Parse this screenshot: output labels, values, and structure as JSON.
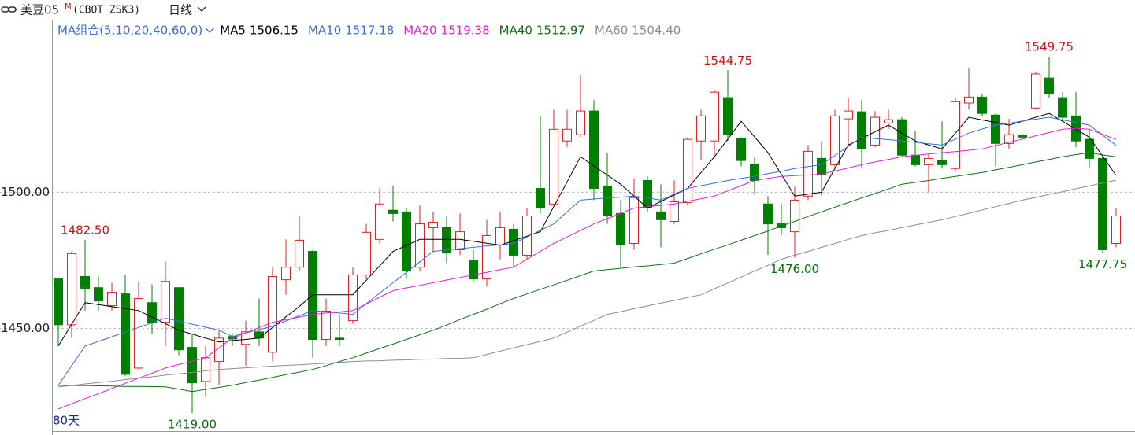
{
  "header": {
    "symbol": "美豆05",
    "flag": "M",
    "code": "(CBOT ZSK3)",
    "period": "日线"
  },
  "chart_data": {
    "type": "candlestick",
    "ma_group": "MA组合(5,10,20,40,60,0)",
    "footer": "80天",
    "ylim": [
      1412.4,
      1563.0
    ],
    "yticks": [
      {
        "value": 1450,
        "label": "1450.00"
      },
      {
        "value": 1500,
        "label": "1500.00"
      }
    ],
    "grid": true,
    "up_color": "#e02020",
    "down_color": "#008000",
    "candles": {
      "open": [
        1468.2,
        1451.4,
        1469.1,
        1465.0,
        1458.4,
        1462.7,
        1435.5,
        1459.5,
        1452.3,
        1465.0,
        1443.1,
        1430.6,
        1437.9,
        1447.1,
        1444.2,
        1448.8,
        1441.3,
        1467.9,
        1472.5,
        1478.3,
        1446.0,
        1446.5,
        1452.9,
        1469.7,
        1482.7,
        1493.4,
        1492.8,
        1472.5,
        1487.0,
        1487.0,
        1478.9,
        1474.9,
        1468.2,
        1480.6,
        1486.4,
        1476.9,
        1501.4,
        1495.7,
        1518.8,
        1521.1,
        1529.8,
        1502.3,
        1492.2,
        1481.2,
        1504.3,
        1492.8,
        1489.3,
        1496.2,
        1518.8,
        1518.8,
        1534.7,
        1519.7,
        1510.1,
        1495.7,
        1488.4,
        1485.5,
        1498.6,
        1512.4,
        1510.1,
        1526.9,
        1529.5,
        1517.3,
        1525.4,
        1526.6,
        1513.6,
        1510.1,
        1511.6,
        1508.7,
        1532.7,
        1534.9,
        1528.3,
        1517.9,
        1520.8,
        1530.9,
        1541.9,
        1534.7,
        1528.0,
        1519.4,
        1512.4,
        1481.2
      ],
      "high": [
        1468.2,
        1478.3,
        1482.5,
        1469.1,
        1466.8,
        1469.7,
        1467.3,
        1466.2,
        1474.6,
        1465.0,
        1448.0,
        1443.6,
        1449.4,
        1448.3,
        1452.9,
        1461.0,
        1472.5,
        1482.7,
        1491.3,
        1478.9,
        1461.0,
        1455.2,
        1472.5,
        1488.4,
        1501.4,
        1502.3,
        1494.2,
        1495.1,
        1492.8,
        1491.3,
        1492.2,
        1478.9,
        1489.9,
        1492.8,
        1488.4,
        1494.2,
        1528.0,
        1530.3,
        1530.3,
        1543.1,
        1533.8,
        1514.5,
        1497.1,
        1504.9,
        1505.8,
        1502.9,
        1504.3,
        1520.2,
        1530.3,
        1537.6,
        1544.75,
        1520.2,
        1513.0,
        1498.6,
        1495.7,
        1502.0,
        1517.3,
        1518.8,
        1530.3,
        1534.7,
        1533.8,
        1529.8,
        1530.3,
        1527.5,
        1522.3,
        1514.5,
        1526.0,
        1534.7,
        1545.4,
        1536.1,
        1528.9,
        1526.9,
        1521.4,
        1544.2,
        1549.75,
        1536.7,
        1536.7,
        1523.1,
        1513.6,
        1494.2
      ],
      "low": [
        1443.6,
        1446.5,
        1456.6,
        1456.6,
        1456.6,
        1432.7,
        1435.0,
        1448.0,
        1443.6,
        1440.2,
        1419.0,
        1424.9,
        1429.2,
        1443.6,
        1436.4,
        1443.6,
        1437.9,
        1462.4,
        1471.1,
        1439.3,
        1443.6,
        1443.6,
        1451.7,
        1468.2,
        1481.2,
        1489.3,
        1468.2,
        1471.1,
        1478.3,
        1474.0,
        1476.9,
        1467.3,
        1465.3,
        1475.4,
        1472.5,
        1475.4,
        1492.2,
        1495.1,
        1516.5,
        1520.2,
        1497.1,
        1488.4,
        1472.5,
        1478.9,
        1492.8,
        1479.8,
        1488.4,
        1495.1,
        1511.6,
        1513.6,
        1518.8,
        1509.5,
        1499.1,
        1477.0,
        1484.1,
        1476.0,
        1497.1,
        1498.6,
        1508.7,
        1517.3,
        1508.7,
        1516.5,
        1523.1,
        1513.0,
        1509.5,
        1500.0,
        1508.7,
        1507.8,
        1530.3,
        1528.0,
        1509.5,
        1515.9,
        1519.7,
        1530.3,
        1534.7,
        1526.0,
        1516.5,
        1508.7,
        1477.75,
        1479.8
      ],
      "close": [
        1451.4,
        1477.5,
        1464.7,
        1460.1,
        1463.3,
        1433.2,
        1461.0,
        1452.3,
        1467.3,
        1442.2,
        1430.1,
        1439.3,
        1446.5,
        1446.2,
        1448.8,
        1446.5,
        1469.1,
        1472.5,
        1482.4,
        1446.0,
        1456.4,
        1446.0,
        1469.7,
        1485.3,
        1495.7,
        1492.2,
        1471.1,
        1488.4,
        1489.0,
        1477.7,
        1485.5,
        1468.2,
        1484.1,
        1487.0,
        1476.9,
        1491.3,
        1494.2,
        1523.1,
        1523.1,
        1529.8,
        1501.4,
        1491.3,
        1480.6,
        1498.0,
        1494.2,
        1489.9,
        1496.5,
        1519.4,
        1528.0,
        1536.7,
        1521.1,
        1511.6,
        1504.3,
        1488.4,
        1487.0,
        1497.1,
        1515.0,
        1506.6,
        1528.0,
        1529.8,
        1515.9,
        1527.5,
        1526.6,
        1513.6,
        1510.1,
        1512.4,
        1510.1,
        1533.2,
        1534.9,
        1528.9,
        1517.9,
        1521.1,
        1520.2,
        1543.4,
        1536.1,
        1527.5,
        1518.8,
        1512.4,
        1478.9,
        1491.3
      ]
    },
    "series": [
      {
        "name": "MA5",
        "color": "#000000",
        "last": "1506.15",
        "values": [
          1443.6,
          1451.6,
          1459.5,
          1458.8,
          1458.0,
          1457.3,
          1456.6,
          1454.2,
          1451.8,
          1449.4,
          1448.0,
          1446.5,
          1445.1,
          1445.6,
          1446.0,
          1446.5,
          1450.4,
          1454.3,
          1458.1,
          1462.4,
          1462.4,
          1462.4,
          1462.4,
          1467.7,
          1473.0,
          1478.3,
          1480.5,
          1482.7,
          1482.7,
          1482.7,
          1482.7,
          1482.0,
          1481.3,
          1480.6,
          1482.2,
          1483.9,
          1485.5,
          1494.7,
          1503.8,
          1513.0,
          1509.6,
          1506.3,
          1502.9,
          1498.6,
          1494.2,
          1496.6,
          1499.0,
          1501.4,
          1507.2,
          1513.0,
          1519.5,
          1526.0,
          1520.3,
          1514.5,
          1506.6,
          1498.6,
          1499.3,
          1500.0,
          1508.7,
          1517.3,
          1519.7,
          1522.2,
          1524.6,
          1521.7,
          1518.8,
          1517.3,
          1515.9,
          1521.7,
          1527.5,
          1526.5,
          1525.6,
          1524.6,
          1526.0,
          1527.5,
          1528.9,
          1526.0,
          1523.1,
          1520.2,
          1513.2,
          1506.15
        ]
      },
      {
        "name": "MA10",
        "color": "#3a6fd8",
        "last": "1517.18",
        "values": [
          1429.2,
          1436.4,
          1443.6,
          1445.3,
          1447.0,
          1448.7,
          1450.4,
          1452.1,
          1453.8,
          1452.7,
          1451.6,
          1450.5,
          1449.4,
          1447.1,
          1448.4,
          1449.6,
          1450.9,
          1452.8,
          1454.7,
          1456.6,
          1456.1,
          1455.7,
          1455.2,
          1459.1,
          1463.0,
          1466.8,
          1470.6,
          1474.5,
          1478.3,
          1478.8,
          1479.3,
          1479.8,
          1480.3,
          1480.7,
          1481.2,
          1483.6,
          1486.0,
          1488.4,
          1492.8,
          1497.1,
          1497.5,
          1497.9,
          1498.2,
          1498.6,
          1497.9,
          1497.1,
          1499.3,
          1501.4,
          1502.4,
          1503.3,
          1504.3,
          1505.1,
          1505.8,
          1506.8,
          1507.7,
          1508.7,
          1509.4,
          1510.1,
          1513.5,
          1516.8,
          1520.2,
          1519.7,
          1519.3,
          1518.8,
          1518.3,
          1517.8,
          1517.3,
          1519.5,
          1521.7,
          1523.2,
          1524.6,
          1525.3,
          1526.1,
          1526.8,
          1527.5,
          1526.5,
          1525.6,
          1524.6,
          1520.9,
          1517.18
        ]
      },
      {
        "name": "MA20",
        "color": "#e020d0",
        "last": "1519.38",
        "values": [
          1420.5,
          1422.4,
          1424.3,
          1426.1,
          1428.0,
          1429.9,
          1431.8,
          1433.6,
          1435.5,
          1436.8,
          1438.0,
          1439.3,
          1442.9,
          1446.5,
          1448.4,
          1450.4,
          1452.3,
          1453.3,
          1454.2,
          1455.2,
          1455.7,
          1456.1,
          1456.6,
          1459.0,
          1461.5,
          1463.9,
          1464.9,
          1465.8,
          1466.8,
          1467.8,
          1468.7,
          1469.7,
          1470.6,
          1471.6,
          1472.5,
          1475.4,
          1478.3,
          1481.2,
          1483.6,
          1486.0,
          1488.4,
          1490.3,
          1492.3,
          1494.2,
          1494.7,
          1495.2,
          1495.7,
          1496.7,
          1497.6,
          1498.6,
          1500.5,
          1502.4,
          1504.3,
          1505.1,
          1505.8,
          1506.1,
          1506.3,
          1506.6,
          1507.8,
          1508.9,
          1510.1,
          1511.1,
          1512.0,
          1513.0,
          1513.5,
          1514.0,
          1514.5,
          1514.9,
          1515.4,
          1515.9,
          1517.1,
          1518.3,
          1519.5,
          1520.7,
          1521.9,
          1523.1,
          1523.4,
          1523.1,
          1521.2,
          1519.38
        ]
      },
      {
        "name": "MA40",
        "color": "#107010",
        "last": "1512.97",
        "values": [
          1429.2,
          1429.1,
          1429.1,
          1429.0,
          1428.9,
          1428.8,
          1428.8,
          1428.7,
          1428.6,
          1427.8,
          1426.9,
          1427.7,
          1428.4,
          1429.2,
          1430.2,
          1431.1,
          1432.1,
          1433.1,
          1434.0,
          1435.0,
          1436.4,
          1437.9,
          1439.3,
          1441.0,
          1442.7,
          1444.3,
          1446.0,
          1447.7,
          1449.4,
          1451.3,
          1453.3,
          1455.2,
          1457.1,
          1459.1,
          1461.0,
          1462.7,
          1464.4,
          1466.0,
          1467.7,
          1469.4,
          1471.1,
          1471.6,
          1472.1,
          1472.6,
          1473.0,
          1473.5,
          1474.0,
          1475.7,
          1477.4,
          1479.1,
          1480.7,
          1482.4,
          1484.1,
          1485.8,
          1487.6,
          1489.3,
          1491.1,
          1492.8,
          1494.5,
          1496.2,
          1497.9,
          1499.5,
          1501.2,
          1502.9,
          1503.6,
          1504.3,
          1505.1,
          1505.8,
          1506.5,
          1507.2,
          1508.2,
          1509.1,
          1510.1,
          1511.1,
          1512.0,
          1513.0,
          1513.8,
          1514.5,
          1513.7,
          1512.97
        ]
      },
      {
        "name": "MA60",
        "color": "#8c8c8c",
        "last": "1504.40",
        "values": [
          1428.6,
          1429.1,
          1429.7,
          1430.2,
          1430.7,
          1431.3,
          1431.8,
          1432.3,
          1432.9,
          1433.4,
          1433.9,
          1434.5,
          1435.0,
          1435.3,
          1435.6,
          1435.9,
          1436.2,
          1436.5,
          1436.7,
          1437.0,
          1437.3,
          1437.6,
          1437.9,
          1438.1,
          1438.2,
          1438.4,
          1438.5,
          1438.7,
          1438.8,
          1439.0,
          1439.1,
          1439.3,
          1440.5,
          1441.7,
          1442.9,
          1444.1,
          1445.3,
          1446.5,
          1448.7,
          1450.9,
          1453.0,
          1455.2,
          1456.2,
          1457.3,
          1458.3,
          1459.3,
          1460.3,
          1461.4,
          1462.4,
          1464.6,
          1466.7,
          1468.9,
          1471.1,
          1473.2,
          1475.4,
          1476.9,
          1478.3,
          1479.8,
          1481.2,
          1482.7,
          1484.1,
          1485.1,
          1486.0,
          1487.0,
          1488.0,
          1488.9,
          1489.9,
          1491.1,
          1492.3,
          1493.5,
          1494.7,
          1495.9,
          1497.1,
          1498.1,
          1499.2,
          1500.2,
          1501.3,
          1502.3,
          1503.4,
          1504.4
        ]
      }
    ],
    "annotations": [
      {
        "value": 1482.5,
        "label": "1482.50",
        "color": "#d01010"
      },
      {
        "value": 1419.0,
        "label": "1419.00",
        "color": "#087008"
      },
      {
        "value": 1544.75,
        "label": "1544.75",
        "color": "#d01010"
      },
      {
        "value": 1476.0,
        "label": "1476.00",
        "color": "#087008"
      },
      {
        "value": 1549.75,
        "label": "1549.75",
        "color": "#d01010"
      },
      {
        "value": 1477.75,
        "label": "1477.75",
        "color": "#087008"
      }
    ]
  }
}
